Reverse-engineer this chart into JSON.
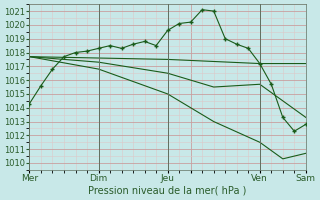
{
  "xlabel": "Pression niveau de la mer( hPa )",
  "bg_color": "#c8e8e8",
  "grid_major_color": "#c8a0a0",
  "grid_minor_color": "#ddc8c8",
  "line_color": "#1a5c1a",
  "ylim": [
    1009.5,
    1021.5
  ],
  "yticks": [
    1010,
    1011,
    1012,
    1013,
    1014,
    1015,
    1016,
    1017,
    1018,
    1019,
    1020,
    1021
  ],
  "xlim": [
    0,
    24
  ],
  "xtick_positions": [
    0,
    6,
    12,
    14,
    20,
    24
  ],
  "xtick_labels": [
    "Mer",
    "Dim",
    "Jeu",
    "",
    "Ven",
    "Sam"
  ],
  "vline_positions": [
    0,
    6,
    12,
    20,
    24
  ],
  "series_main": {
    "x": [
      0,
      1,
      2,
      3,
      4,
      5,
      6,
      7,
      8,
      9,
      10,
      11,
      12,
      13,
      14,
      15,
      16,
      17,
      18,
      19,
      20,
      21,
      22,
      23,
      24
    ],
    "y": [
      1014.3,
      1015.6,
      1016.8,
      1017.7,
      1018.0,
      1018.1,
      1018.3,
      1018.5,
      1018.3,
      1018.6,
      1018.8,
      1018.5,
      1019.6,
      1020.1,
      1020.2,
      1021.1,
      1021.0,
      1019.0,
      1018.6,
      1018.3,
      1017.2,
      1015.7,
      1013.3,
      1012.3,
      1012.8
    ],
    "marker": "+"
  },
  "series_flat": [
    {
      "x": [
        0,
        12,
        20,
        24
      ],
      "y": [
        1017.7,
        1017.5,
        1017.2,
        1017.2
      ]
    },
    {
      "x": [
        0,
        6,
        12,
        16,
        20,
        24
      ],
      "y": [
        1017.7,
        1017.3,
        1016.5,
        1015.5,
        1015.7,
        1013.3
      ]
    },
    {
      "x": [
        0,
        6,
        12,
        16,
        20,
        22,
        24
      ],
      "y": [
        1017.7,
        1016.8,
        1015.0,
        1013.0,
        1011.5,
        1010.3,
        1010.7
      ]
    }
  ]
}
